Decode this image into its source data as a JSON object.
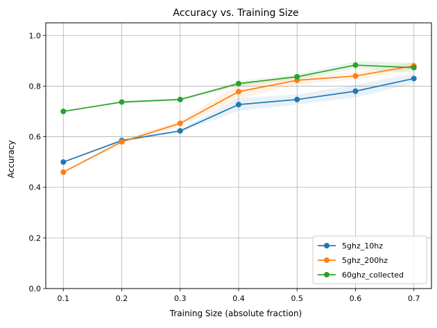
{
  "chart_data": {
    "type": "line",
    "title": "Accuracy vs. Training Size",
    "xlabel": "Training Size (absolute fraction)",
    "ylabel": "Accuracy",
    "x": [
      0.1,
      0.2,
      0.3,
      0.4,
      0.5,
      0.6,
      0.7
    ],
    "x_ticks": [
      "0.1",
      "0.2",
      "0.3",
      "0.4",
      "0.5",
      "0.6",
      "0.7"
    ],
    "y_ticks": [
      "0.0",
      "0.2",
      "0.4",
      "0.6",
      "0.8",
      "1.0"
    ],
    "xlim": [
      0.07,
      0.73
    ],
    "ylim": [
      0.0,
      1.05
    ],
    "grid": true,
    "legend_position": "lower-right",
    "series": [
      {
        "name": "5ghz_10hz",
        "color": "#1f77b4",
        "values": [
          0.5,
          0.585,
          0.623,
          0.727,
          0.747,
          0.78,
          0.83
        ],
        "band": [
          0.0,
          0.005,
          0.005,
          0.025,
          0.02,
          0.025,
          0.02
        ]
      },
      {
        "name": "5ghz_200hz",
        "color": "#ff7f0e",
        "values": [
          0.46,
          0.58,
          0.653,
          0.778,
          0.823,
          0.84,
          0.88
        ],
        "band": [
          0.0,
          0.01,
          0.01,
          0.03,
          0.015,
          0.015,
          0.015
        ]
      },
      {
        "name": "60ghz_collected",
        "color": "#2ca02c",
        "values": [
          0.7,
          0.737,
          0.747,
          0.81,
          0.837,
          0.883,
          0.873
        ],
        "band": [
          0.0,
          0.005,
          0.005,
          0.01,
          0.01,
          0.015,
          0.02
        ]
      }
    ]
  }
}
